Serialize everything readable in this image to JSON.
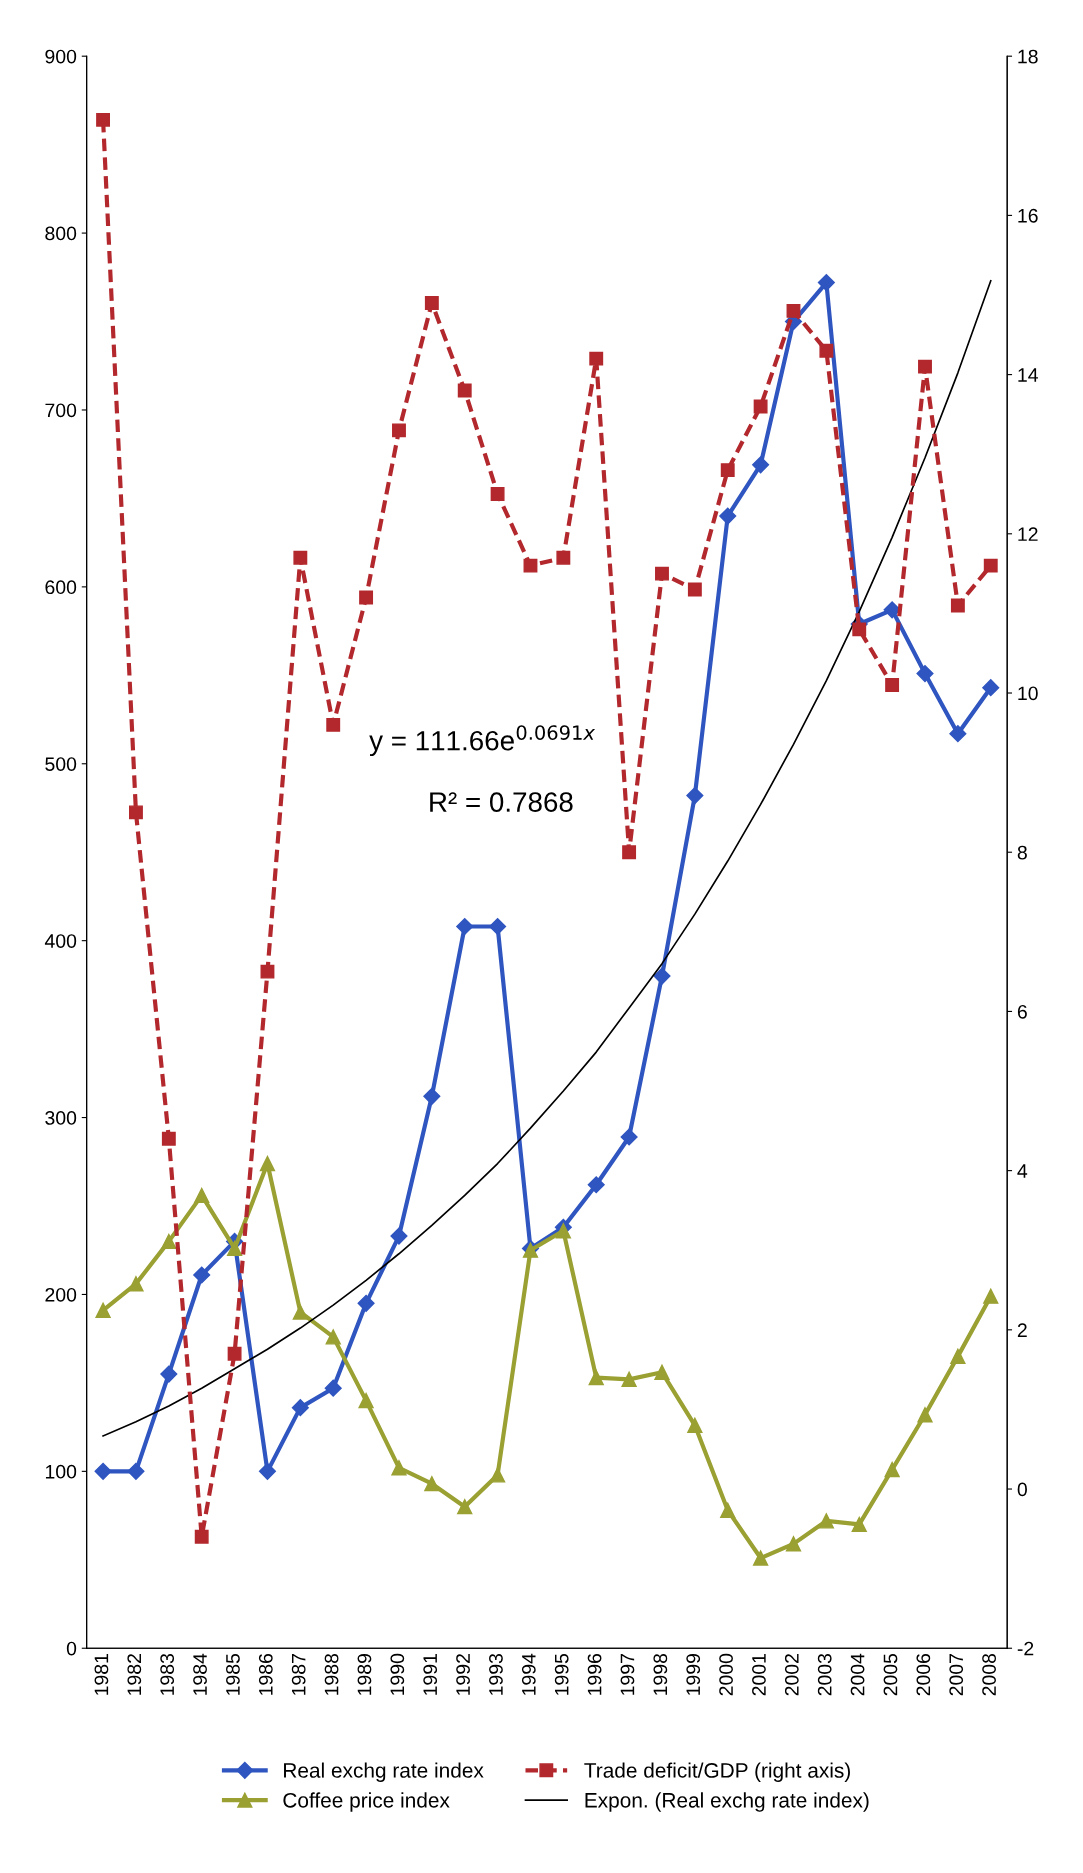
{
  "chart_data": {
    "type": "line",
    "categories": [
      "1981",
      "1982",
      "1983",
      "1984",
      "1985",
      "1986",
      "1987",
      "1988",
      "1989",
      "1990",
      "1991",
      "1992",
      "1993",
      "1994",
      "1995",
      "1996",
      "1997",
      "1998",
      "1999",
      "2000",
      "2001",
      "2002",
      "2003",
      "2004",
      "2005",
      "2006",
      "2007",
      "2008"
    ],
    "series": [
      {
        "name": "Real exchg rate index",
        "color": "#2f55c0",
        "marker": "diamond",
        "line_style": "solid",
        "values": [
          100,
          100,
          155,
          211,
          230,
          100,
          136,
          147,
          195,
          233,
          312,
          408,
          408,
          226,
          238,
          262,
          289,
          380,
          482,
          640,
          669,
          750,
          772,
          579,
          587,
          551,
          517,
          543
        ]
      },
      {
        "name": "Coffee price index",
        "color": "#9aa032",
        "marker": "triangle",
        "line_style": "solid",
        "values": [
          191,
          206,
          230,
          256,
          226,
          274,
          190,
          176,
          140,
          102,
          93,
          80,
          98,
          225,
          236,
          153,
          152,
          156,
          126,
          78,
          51,
          59,
          72,
          70,
          101,
          132,
          165,
          199
        ]
      },
      {
        "name": "Trade deficit/GDP (right axis)",
        "color": "#b3282d",
        "marker": "square",
        "line_style": "dashed",
        "axis": "y2",
        "values": [
          17.2,
          8.5,
          4.4,
          -0.6,
          1.7,
          6.5,
          11.7,
          9.6,
          11.2,
          13.3,
          14.9,
          13.8,
          12.5,
          11.6,
          11.7,
          14.2,
          8.0,
          11.5,
          11.3,
          12.8,
          13.6,
          14.8,
          14.3,
          10.8,
          10.1,
          14.1,
          11.1,
          11.6
        ]
      },
      {
        "name": "Expon. (Real exchg rate index)",
        "color": "#000000",
        "marker": "none",
        "line_style": "solid",
        "values": [
          120,
          128,
          137,
          147,
          158,
          169,
          181,
          194,
          208,
          223,
          239,
          256,
          274,
          294,
          315,
          337,
          362,
          387,
          415,
          445,
          477,
          511,
          547,
          586,
          628,
          673,
          721,
          773
        ]
      }
    ],
    "annotations": [
      "y = 111.66e$^{0.0691x}$",
      "R² = 0.7868"
    ],
    "ylim": [
      0,
      900
    ],
    "yticks": [
      0,
      100,
      200,
      300,
      400,
      500,
      600,
      700,
      800,
      900
    ],
    "y2lim": [
      -2,
      18
    ],
    "y2ticks": [
      -2,
      0,
      2,
      4,
      6,
      8,
      10,
      12,
      14,
      16,
      18
    ],
    "grid": false,
    "legend": "bottom"
  }
}
